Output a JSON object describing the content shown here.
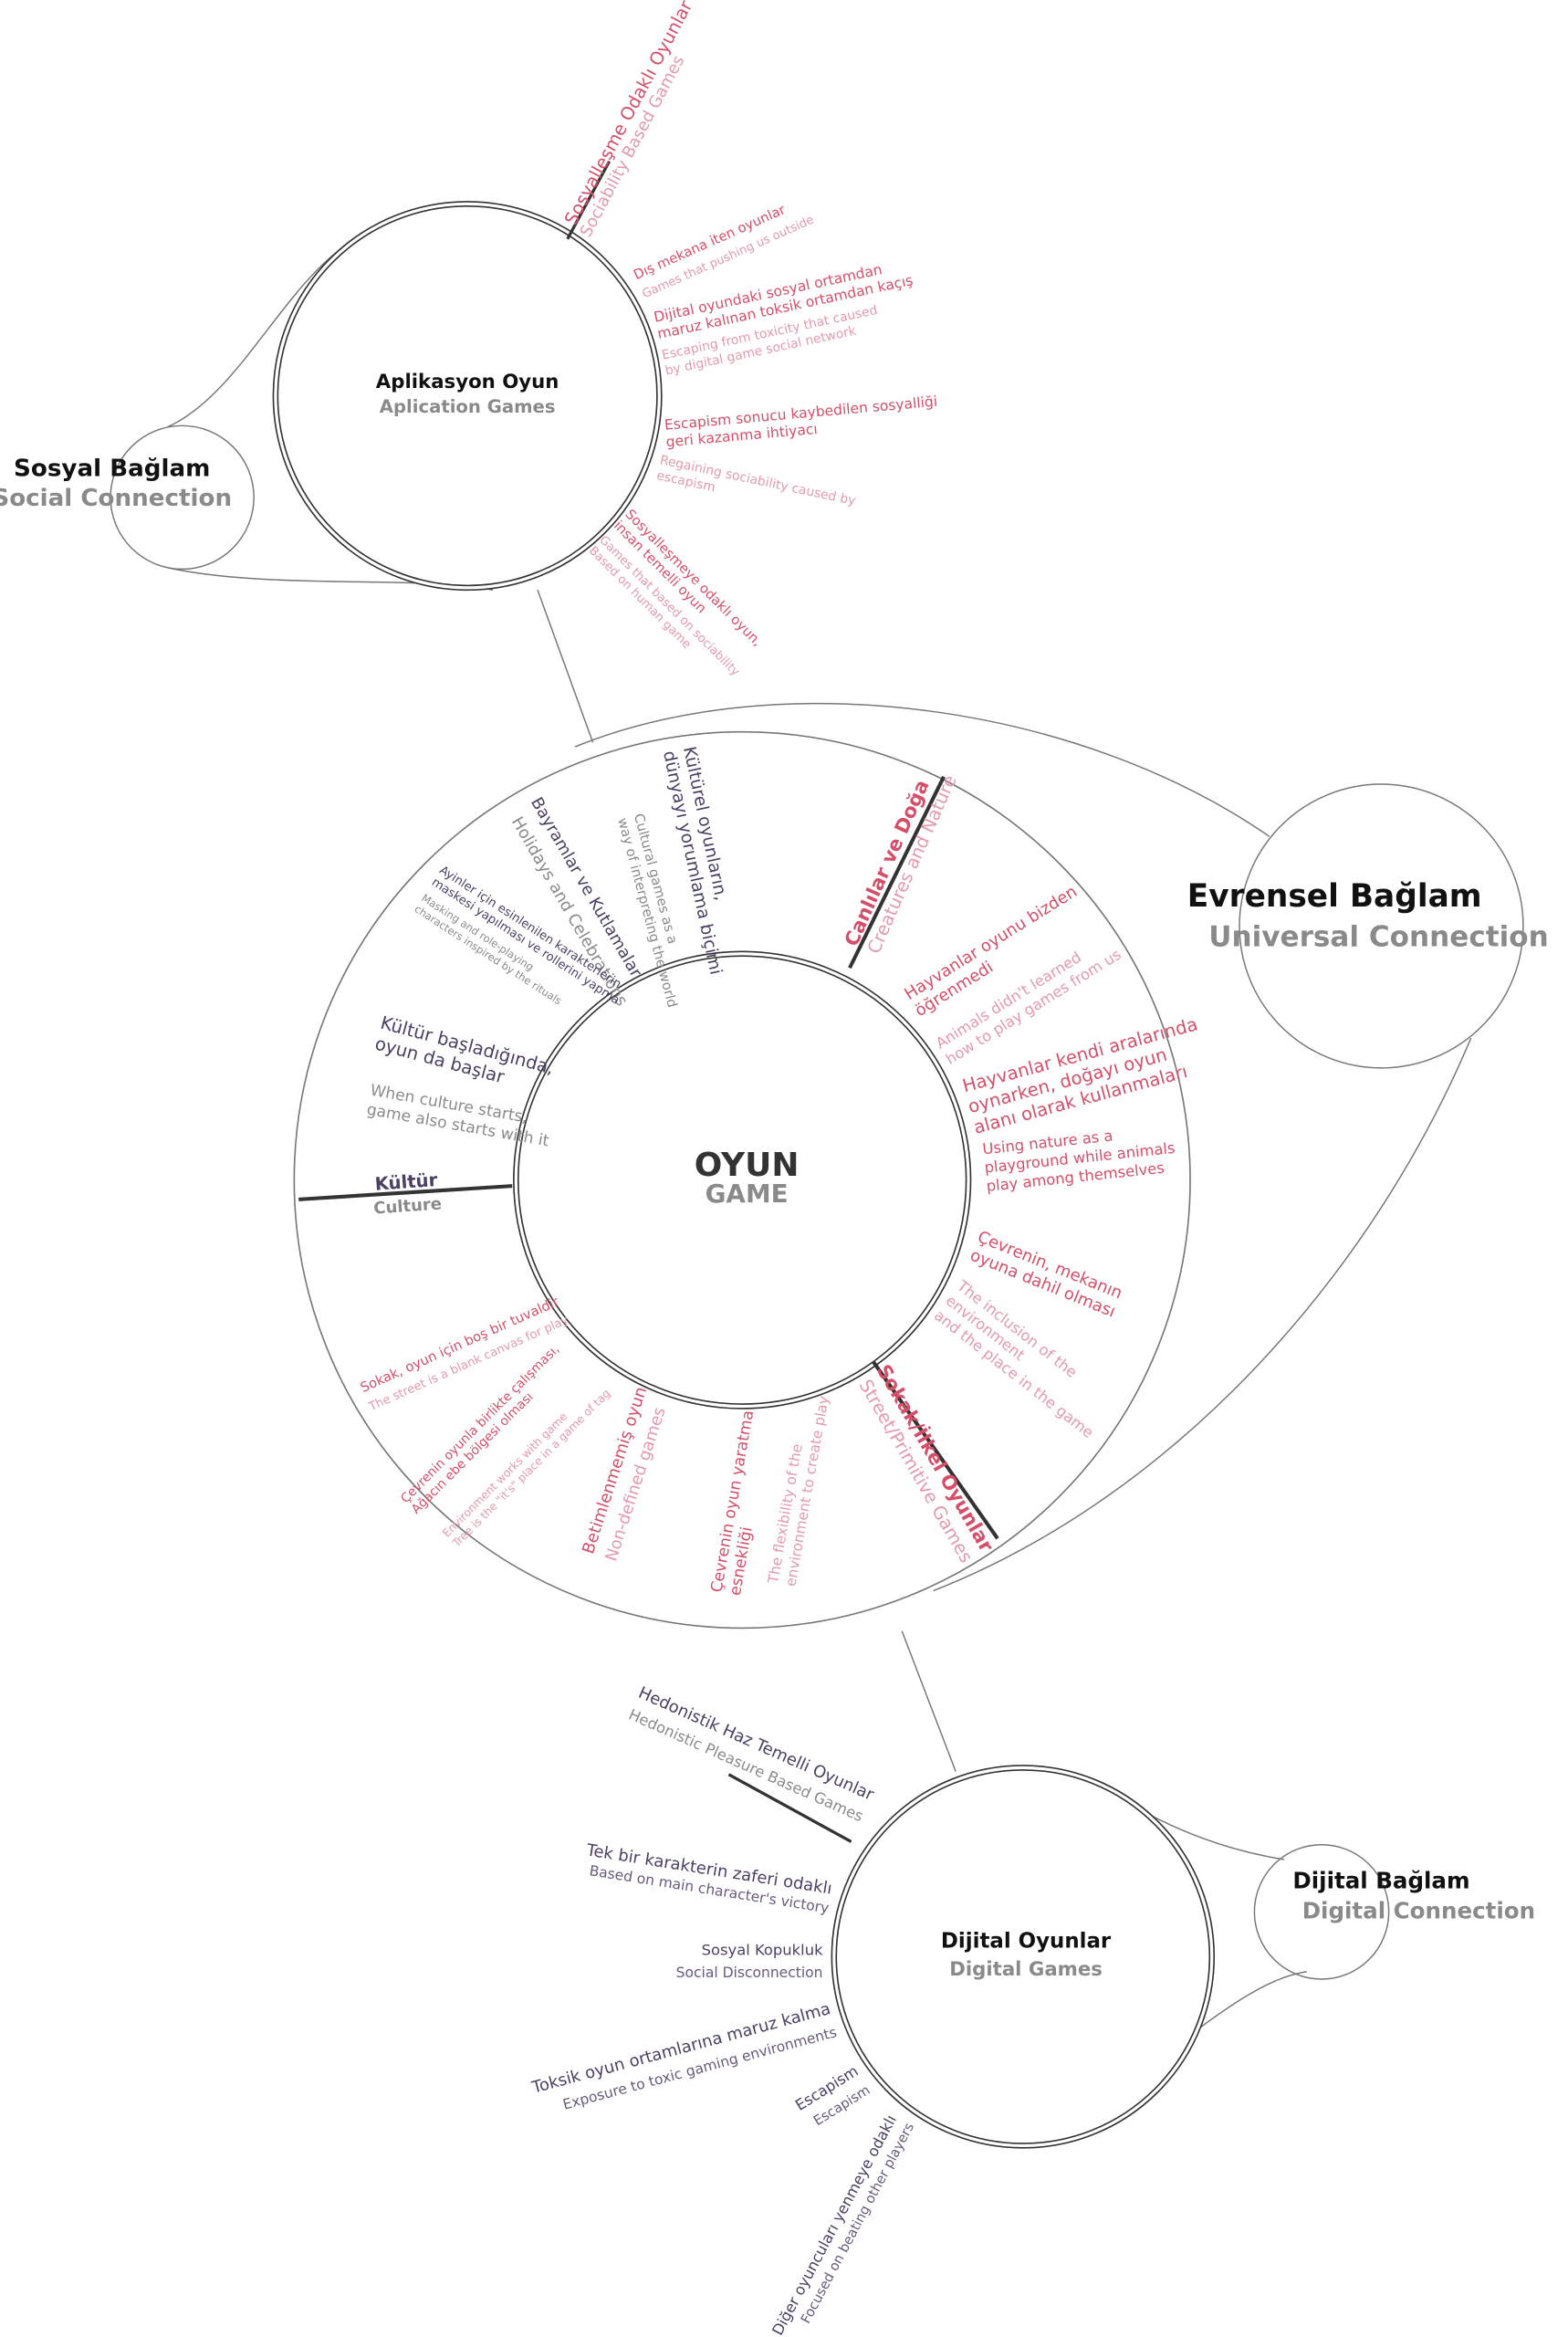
{
  "center": {
    "title": "OYUN",
    "subtitle": "GAME"
  },
  "contexts": [
    {
      "title": "Sosyal Bağlam",
      "subtitle": "Social Connection"
    },
    {
      "title": "Evrensel Bağlam",
      "subtitle": "Universal Connection"
    },
    {
      "title": "Dijital Bağlam",
      "subtitle": "Digital Connection"
    }
  ],
  "hubs": [
    {
      "title": "Aplikasyon Oyun",
      "subtitle": "Aplication Games",
      "heading": {
        "tr": [
          "Sosyalleşme Odaklı Oyunlar"
        ],
        "en": [
          "Sociability Based Games"
        ]
      },
      "branches": [
        {
          "tr": [
            "Dış mekana iten oyunlar"
          ],
          "en": [
            "Games that pushing us outside"
          ]
        },
        {
          "tr": [
            "Dijital oyundaki sosyal ortamdan",
            "maruz kalınan toksik ortamdan kaçış"
          ],
          "en": [
            "Escaping from toxicity that caused",
            "by digital game social network"
          ]
        },
        {
          "tr": [
            "Escapism sonucu kaybedilen sosyalliği",
            "geri kazanma ihtiyacı"
          ],
          "en": [
            "Regaining sociability caused by",
            "escapism"
          ]
        },
        {
          "tr": [
            "Sosyalleşmeye odaklı oyun,",
            "insan temelli oyun"
          ],
          "en": [
            "Games that based on sociability",
            "Based on human game"
          ]
        }
      ]
    },
    {
      "title": "Dijital Oyunlar",
      "subtitle": "Digital Games",
      "heading": {
        "tr": [
          "Hedonistik Haz Temelli Oyunlar"
        ],
        "en": [
          "Hedonistic Pleasure Based Games"
        ]
      },
      "branches": [
        {
          "tr": [
            "Tek bir karakterin zaferi odaklı"
          ],
          "en": [
            "Based on main character's victory"
          ]
        },
        {
          "tr": [
            "Sosyal Kopukluk"
          ],
          "en": [
            "Social Disconnection"
          ]
        },
        {
          "tr": [
            "Toksik oyun ortamlarına maruz kalma"
          ],
          "en": [
            "Exposure to toxic gaming environments"
          ]
        },
        {
          "tr": [
            "Escapism"
          ],
          "en": [
            "Escapism"
          ]
        },
        {
          "tr": [
            "Diğer oyuncuları yenmeye odaklı"
          ],
          "en": [
            "Focused on beating other players"
          ]
        }
      ]
    }
  ],
  "ring": [
    {
      "title": "Kültür",
      "subtitle": "Culture",
      "items": [
        {
          "tr": [
            "Kültürel oyunların,",
            "dünyayı yorumlama biçimi"
          ],
          "en": [
            "Cultural games as a",
            "way of interpreting the world"
          ]
        },
        {
          "tr": [
            "Bayramlar ve Kutlamalar"
          ],
          "en": [
            "Holidays and Celebrations"
          ]
        },
        {
          "tr": [
            "Ayinler için esinlenilen karakterlerin",
            "maskesi yapılması ve rollerini yapma"
          ],
          "en": [
            "Masking and role-playing",
            "characters inspired by the rituals"
          ]
        },
        {
          "tr": [
            "Kültür başladığında,",
            "oyun da başlar"
          ],
          "en": [
            "When culture starts,",
            "game also starts with it"
          ]
        }
      ]
    },
    {
      "title": "Canlılar ve Doğa",
      "subtitle": "Creatures and Nature",
      "items": [
        {
          "tr": [
            "Hayvanlar oyunu bizden",
            "öğrenmedi"
          ],
          "en": [
            "Animals didn't learned",
            "how to play games from us"
          ]
        },
        {
          "tr": [
            "Hayvanlar kendi aralarında",
            "oynarken, doğayı oyun",
            "alanı olarak kullanmaları"
          ],
          "en": [
            "Using nature as a",
            "playground while animals",
            "play among themselves"
          ]
        },
        {
          "tr": [
            "Çevrenin, mekanın",
            "oyuna dahil olması"
          ],
          "en": [
            "The inclusion of the",
            "environment",
            "and the place in the game"
          ]
        }
      ]
    },
    {
      "title": "Sokak/İlkel Oyunlar",
      "subtitle": "Street/Primitive Games",
      "items": [
        {
          "tr": [
            "Sokak, oyun için boş bir tuvaldir"
          ],
          "en": [
            "The street is a blank canvas for play"
          ]
        },
        {
          "tr": [
            "Çevrenin oyunla birlikte çalışması,",
            "Ağacın ebe bölgesi olması"
          ],
          "en": [
            "Environment works with game",
            "Tree is the \"it's\" place in a game of tag"
          ]
        },
        {
          "tr": [
            "Betimlenmemiş oyun"
          ],
          "en": [
            "Non-defined games"
          ]
        },
        {
          "tr": [
            "Çevrenin oyun yaratma",
            "esnekliği"
          ],
          "en": [
            "The flexibility of the",
            "environment to create play"
          ]
        }
      ]
    }
  ]
}
